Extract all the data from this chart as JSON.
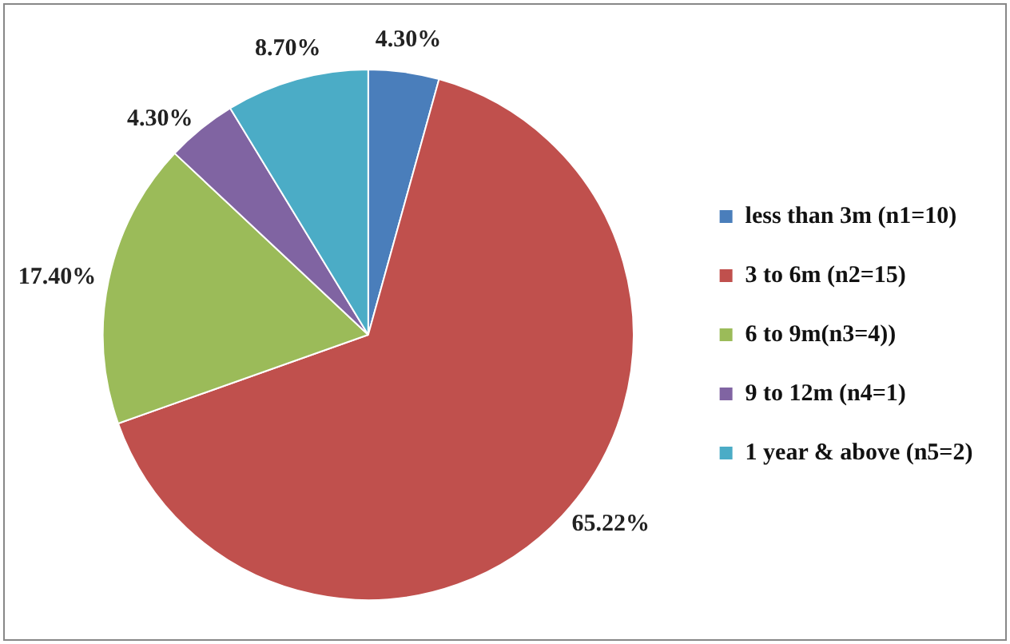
{
  "chart_data": {
    "type": "pie",
    "categories": [
      "less than 3m (n1=10)",
      "3 to 6m (n2=15)",
      "6 to 9m(n3=4))",
      "9 to 12m (n4=1)",
      "1 year & above (n5=2)"
    ],
    "values": [
      4.3,
      65.22,
      17.4,
      4.3,
      8.7
    ],
    "value_labels": [
      "4.30%",
      "65.22%",
      "17.40%",
      "4.30%",
      "8.70%"
    ],
    "colors": [
      "#4a7ebb",
      "#c0504d",
      "#9bbb59",
      "#8064a2",
      "#4bacc6"
    ],
    "legend": "right"
  }
}
